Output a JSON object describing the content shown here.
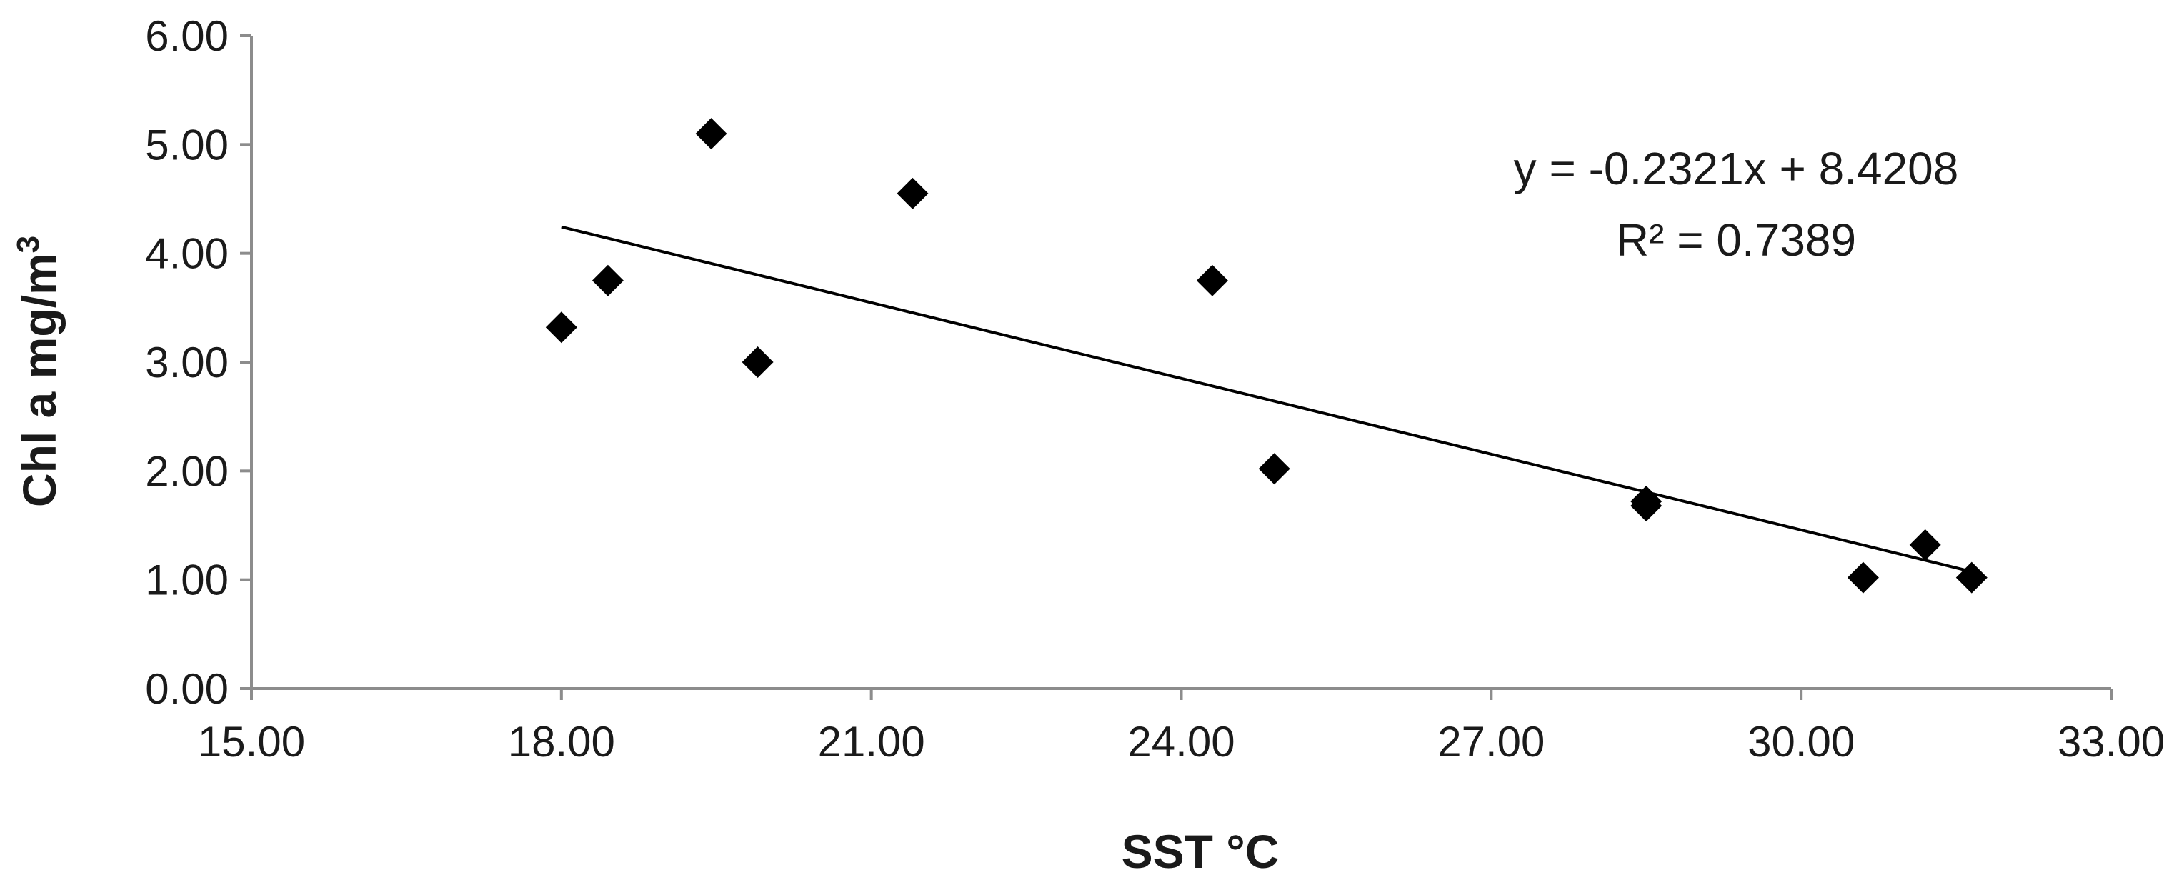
{
  "chart_data": {
    "type": "scatter",
    "title": "",
    "xlabel": "SST °C",
    "ylabel": "Chl a mg/m",
    "ylabel_superscript": "3",
    "xlim": [
      15.0,
      33.0
    ],
    "ylim": [
      0.0,
      6.0
    ],
    "x_ticks": [
      15.0,
      18.0,
      21.0,
      24.0,
      27.0,
      30.0,
      33.0
    ],
    "y_ticks": [
      0.0,
      1.0,
      2.0,
      3.0,
      4.0,
      5.0,
      6.0
    ],
    "x_tick_labels": [
      "15.00",
      "18.00",
      "21.00",
      "24.00",
      "27.00",
      "30.00",
      "33.00"
    ],
    "y_tick_labels": [
      "0.00",
      "1.00",
      "2.00",
      "3.00",
      "4.00",
      "5.00",
      "6.00"
    ],
    "grid": false,
    "marker": "diamond",
    "marker_color": "#000000",
    "series": [
      {
        "points": [
          {
            "x": 18.0,
            "y": 3.32
          },
          {
            "x": 18.45,
            "y": 3.75
          },
          {
            "x": 19.45,
            "y": 5.1
          },
          {
            "x": 19.9,
            "y": 3.0
          },
          {
            "x": 21.4,
            "y": 4.55
          },
          {
            "x": 24.3,
            "y": 3.75
          },
          {
            "x": 24.9,
            "y": 2.02
          },
          {
            "x": 28.5,
            "y": 1.72
          },
          {
            "x": 28.5,
            "y": 1.68
          },
          {
            "x": 30.6,
            "y": 1.02
          },
          {
            "x": 31.2,
            "y": 1.32
          },
          {
            "x": 31.65,
            "y": 1.02
          }
        ]
      }
    ],
    "trendline": {
      "type": "linear",
      "slope": -0.2321,
      "intercept": 8.4208,
      "x_range": [
        18.0,
        31.65
      ],
      "equation_text": "y = -0.2321x + 8.4208",
      "r2_text": "R² = 0.7389"
    }
  }
}
